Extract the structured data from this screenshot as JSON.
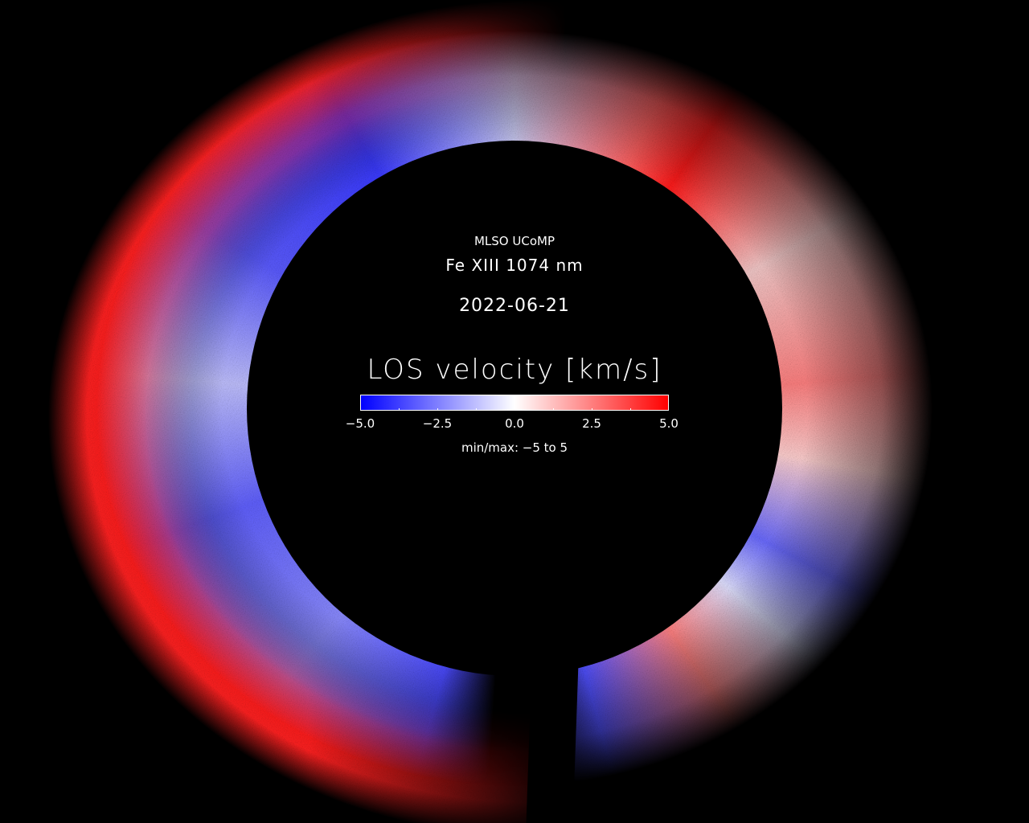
{
  "header": {
    "observatory": "MLSO UCoMP",
    "line": "Fe XIII 1074 nm",
    "date": "2022-06-21"
  },
  "colorbar": {
    "label": "LOS velocity [km/s]",
    "tick_labels": [
      "−5.0",
      "−2.5",
      "0.0",
      "2.5",
      "5.0"
    ],
    "range": [
      -5,
      5
    ],
    "colors": {
      "min": "#0000ff",
      "mid": "#ffffff",
      "max": "#ff0000"
    },
    "minmax_text": "min/max: −5 to 5"
  }
}
